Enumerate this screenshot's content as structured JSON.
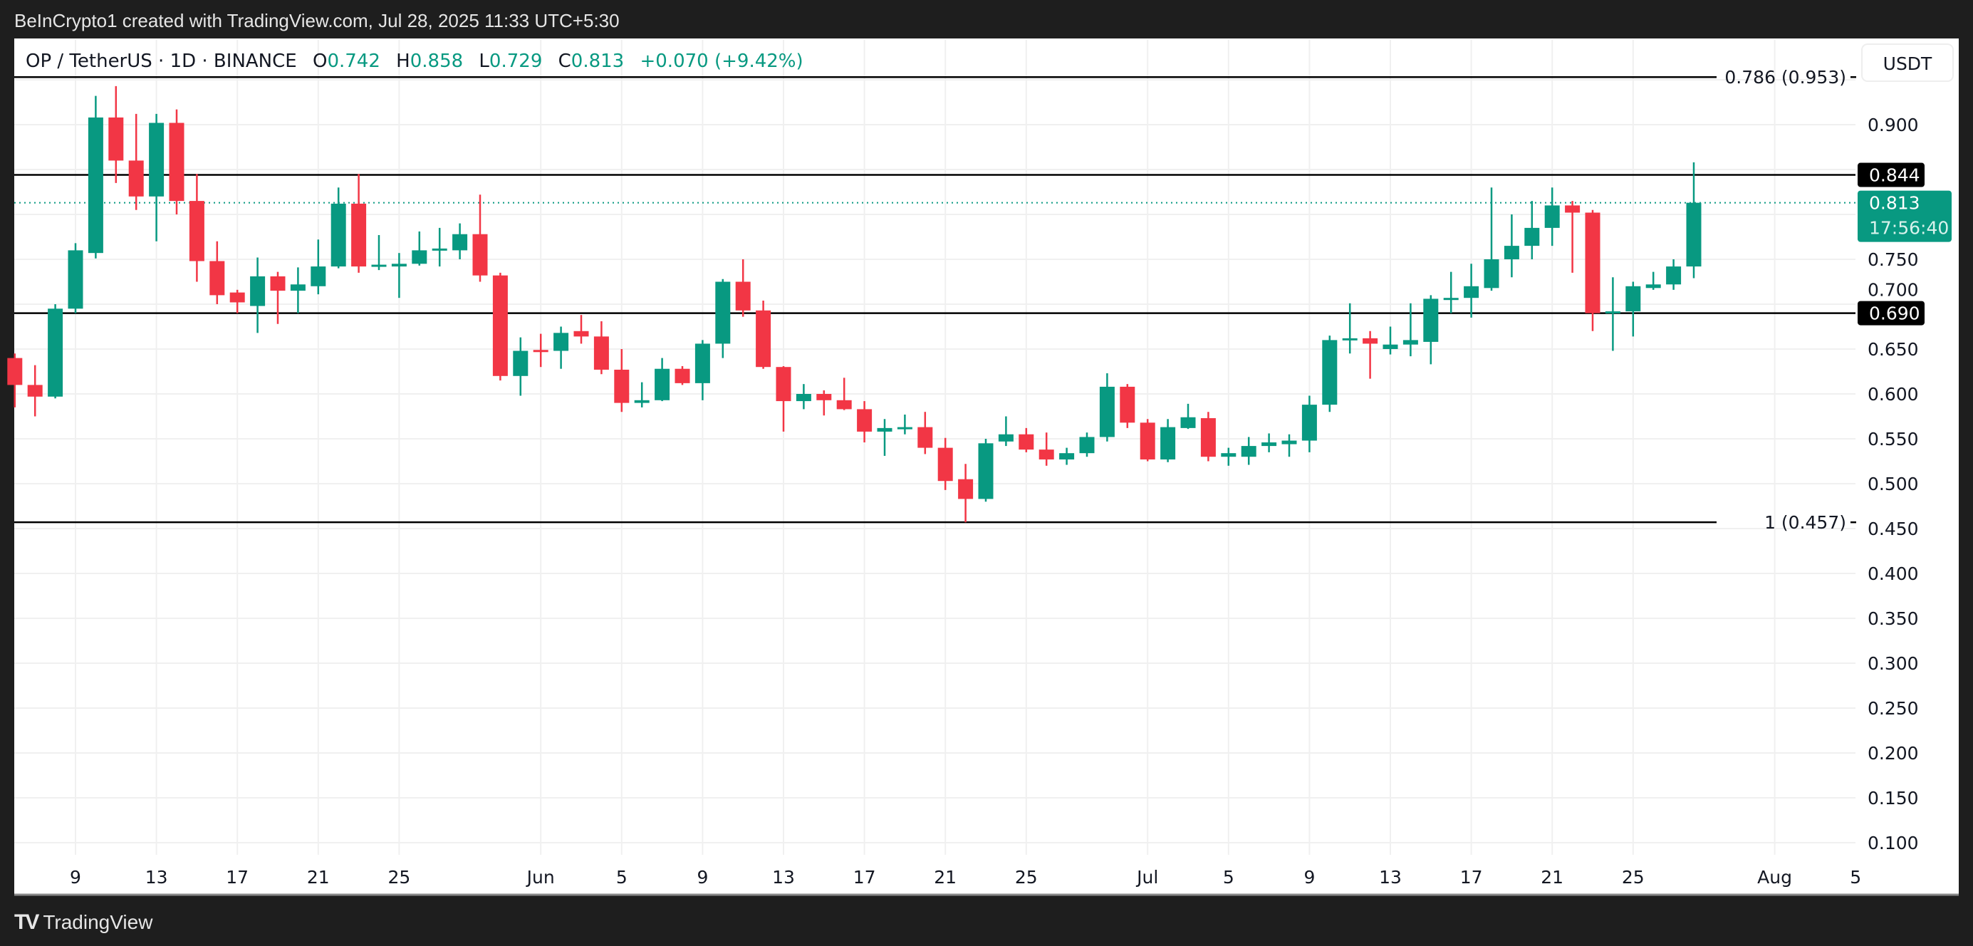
{
  "header": {
    "credit": "BeInCrypto1 created with TradingView.com, Jul 28, 2025 11:33 UTC+5:30"
  },
  "legend": {
    "symbol": "OP / TetherUS · 1D · BINANCE",
    "o_label": "O",
    "o": "0.742",
    "h_label": "H",
    "h": "0.858",
    "l_label": "L",
    "l": "0.729",
    "c_label": "C",
    "c": "0.813",
    "change": "+0.070 (+9.42%)"
  },
  "currency_button": "USDT",
  "footer": {
    "logo": "TradingView",
    "logo_mark": "17"
  },
  "colors": {
    "up": "#089981",
    "down": "#F23645",
    "level": "#000000",
    "grid": "#f0f0f0"
  },
  "chart_data": {
    "type": "candlestick",
    "title": "OP / TetherUS · 1D · BINANCE",
    "ylim": [
      0.08,
      0.97
    ],
    "grid": true,
    "y_ticks": [
      "0.900",
      "0.750",
      "0.700",
      "0.650",
      "0.600",
      "0.550",
      "0.500",
      "0.450",
      "0.400",
      "0.350",
      "0.300",
      "0.250",
      "0.200",
      "0.150",
      "0.100"
    ],
    "x_ticks": [
      {
        "label": "9",
        "date": "2025-05-09"
      },
      {
        "label": "13",
        "date": "2025-05-13"
      },
      {
        "label": "17",
        "date": "2025-05-17"
      },
      {
        "label": "21",
        "date": "2025-05-21"
      },
      {
        "label": "25",
        "date": "2025-05-25"
      },
      {
        "label": "Jun",
        "date": "2025-06-01"
      },
      {
        "label": "5",
        "date": "2025-06-05"
      },
      {
        "label": "9",
        "date": "2025-06-09"
      },
      {
        "label": "13",
        "date": "2025-06-13"
      },
      {
        "label": "17",
        "date": "2025-06-17"
      },
      {
        "label": "21",
        "date": "2025-06-21"
      },
      {
        "label": "25",
        "date": "2025-06-25"
      },
      {
        "label": "Jul",
        "date": "2025-07-01"
      },
      {
        "label": "5",
        "date": "2025-07-05"
      },
      {
        "label": "9",
        "date": "2025-07-09"
      },
      {
        "label": "13",
        "date": "2025-07-13"
      },
      {
        "label": "17",
        "date": "2025-07-17"
      },
      {
        "label": "21",
        "date": "2025-07-21"
      },
      {
        "label": "25",
        "date": "2025-07-25"
      },
      {
        "label": "Aug",
        "date": "2025-08-01"
      },
      {
        "label": "5",
        "date": "2025-08-05"
      }
    ],
    "levels": [
      {
        "price": 0.953,
        "label": "0.786 (0.953)",
        "style": "fib"
      },
      {
        "price": 0.844,
        "label": "0.844",
        "style": "box"
      },
      {
        "price": 0.69,
        "label": "0.690",
        "style": "box"
      },
      {
        "price": 0.457,
        "label": "1 (0.457)",
        "style": "fib"
      }
    ],
    "last_price": {
      "price": 0.813,
      "label": "0.813",
      "countdown": "17:56:40"
    },
    "columns": [
      "date",
      "open",
      "high",
      "low",
      "close"
    ],
    "candles": [
      [
        "2025-05-06",
        0.64,
        0.645,
        0.585,
        0.61
      ],
      [
        "2025-05-07",
        0.61,
        0.632,
        0.575,
        0.597
      ],
      [
        "2025-05-08",
        0.597,
        0.7,
        0.595,
        0.695
      ],
      [
        "2025-05-09",
        0.695,
        0.768,
        0.69,
        0.76
      ],
      [
        "2025-05-10",
        0.757,
        0.932,
        0.751,
        0.908
      ],
      [
        "2025-05-11",
        0.908,
        0.943,
        0.835,
        0.86
      ],
      [
        "2025-05-12",
        0.86,
        0.912,
        0.805,
        0.82
      ],
      [
        "2025-05-13",
        0.82,
        0.912,
        0.77,
        0.902
      ],
      [
        "2025-05-14",
        0.902,
        0.917,
        0.8,
        0.815
      ],
      [
        "2025-05-15",
        0.815,
        0.845,
        0.725,
        0.748
      ],
      [
        "2025-05-16",
        0.748,
        0.77,
        0.7,
        0.71
      ],
      [
        "2025-05-17",
        0.713,
        0.716,
        0.69,
        0.702
      ],
      [
        "2025-05-18",
        0.698,
        0.752,
        0.668,
        0.731
      ],
      [
        "2025-05-19",
        0.731,
        0.736,
        0.678,
        0.715
      ],
      [
        "2025-05-20",
        0.715,
        0.741,
        0.69,
        0.722
      ],
      [
        "2025-05-21",
        0.72,
        0.772,
        0.711,
        0.742
      ],
      [
        "2025-05-22",
        0.742,
        0.83,
        0.74,
        0.812
      ],
      [
        "2025-05-23",
        0.812,
        0.845,
        0.735,
        0.742
      ],
      [
        "2025-05-24",
        0.742,
        0.777,
        0.738,
        0.744
      ],
      [
        "2025-05-25",
        0.742,
        0.757,
        0.707,
        0.745
      ],
      [
        "2025-05-26",
        0.745,
        0.781,
        0.743,
        0.76
      ],
      [
        "2025-05-27",
        0.76,
        0.785,
        0.742,
        0.762
      ],
      [
        "2025-05-28",
        0.76,
        0.79,
        0.75,
        0.778
      ],
      [
        "2025-05-29",
        0.778,
        0.822,
        0.725,
        0.732
      ],
      [
        "2025-05-30",
        0.732,
        0.735,
        0.615,
        0.62
      ],
      [
        "2025-05-31",
        0.62,
        0.663,
        0.598,
        0.648
      ],
      [
        "2025-06-01",
        0.649,
        0.667,
        0.63,
        0.647
      ],
      [
        "2025-06-02",
        0.648,
        0.675,
        0.628,
        0.668
      ],
      [
        "2025-06-03",
        0.67,
        0.688,
        0.656,
        0.664
      ],
      [
        "2025-06-04",
        0.664,
        0.681,
        0.622,
        0.627
      ],
      [
        "2025-06-05",
        0.627,
        0.65,
        0.58,
        0.59
      ],
      [
        "2025-06-06",
        0.59,
        0.613,
        0.585,
        0.593
      ],
      [
        "2025-06-07",
        0.593,
        0.64,
        0.592,
        0.628
      ],
      [
        "2025-06-08",
        0.628,
        0.631,
        0.61,
        0.612
      ],
      [
        "2025-06-09",
        0.612,
        0.66,
        0.593,
        0.656
      ],
      [
        "2025-06-10",
        0.656,
        0.728,
        0.64,
        0.725
      ],
      [
        "2025-06-11",
        0.725,
        0.75,
        0.686,
        0.693
      ],
      [
        "2025-06-12",
        0.693,
        0.704,
        0.628,
        0.63
      ],
      [
        "2025-06-13",
        0.63,
        0.631,
        0.558,
        0.592
      ],
      [
        "2025-06-14",
        0.592,
        0.611,
        0.583,
        0.6
      ],
      [
        "2025-06-15",
        0.6,
        0.604,
        0.576,
        0.593
      ],
      [
        "2025-06-16",
        0.593,
        0.618,
        0.582,
        0.583
      ],
      [
        "2025-06-17",
        0.583,
        0.592,
        0.546,
        0.558
      ],
      [
        "2025-06-18",
        0.558,
        0.572,
        0.531,
        0.562
      ],
      [
        "2025-06-19",
        0.562,
        0.577,
        0.555,
        0.563
      ],
      [
        "2025-06-20",
        0.563,
        0.58,
        0.533,
        0.54
      ],
      [
        "2025-06-21",
        0.54,
        0.551,
        0.493,
        0.503
      ],
      [
        "2025-06-22",
        0.505,
        0.522,
        0.457,
        0.483
      ],
      [
        "2025-06-23",
        0.483,
        0.55,
        0.48,
        0.545
      ],
      [
        "2025-06-24",
        0.547,
        0.575,
        0.542,
        0.555
      ],
      [
        "2025-06-25",
        0.555,
        0.562,
        0.535,
        0.538
      ],
      [
        "2025-06-26",
        0.538,
        0.557,
        0.52,
        0.527
      ],
      [
        "2025-06-27",
        0.527,
        0.54,
        0.521,
        0.534
      ],
      [
        "2025-06-28",
        0.534,
        0.557,
        0.53,
        0.552
      ],
      [
        "2025-06-29",
        0.552,
        0.623,
        0.547,
        0.608
      ],
      [
        "2025-06-30",
        0.608,
        0.611,
        0.562,
        0.568
      ],
      [
        "2025-07-01",
        0.568,
        0.572,
        0.525,
        0.527
      ],
      [
        "2025-07-02",
        0.527,
        0.572,
        0.524,
        0.563
      ],
      [
        "2025-07-03",
        0.562,
        0.589,
        0.561,
        0.574
      ],
      [
        "2025-07-04",
        0.573,
        0.58,
        0.525,
        0.53
      ],
      [
        "2025-07-05",
        0.53,
        0.54,
        0.52,
        0.534
      ],
      [
        "2025-07-06",
        0.53,
        0.552,
        0.521,
        0.542
      ],
      [
        "2025-07-07",
        0.542,
        0.556,
        0.535,
        0.546
      ],
      [
        "2025-07-08",
        0.544,
        0.555,
        0.53,
        0.548
      ],
      [
        "2025-07-09",
        0.548,
        0.598,
        0.535,
        0.588
      ],
      [
        "2025-07-10",
        0.588,
        0.665,
        0.58,
        0.66
      ],
      [
        "2025-07-11",
        0.66,
        0.701,
        0.645,
        0.662
      ],
      [
        "2025-07-12",
        0.662,
        0.67,
        0.617,
        0.656
      ],
      [
        "2025-07-13",
        0.65,
        0.675,
        0.644,
        0.655
      ],
      [
        "2025-07-14",
        0.655,
        0.701,
        0.642,
        0.66
      ],
      [
        "2025-07-15",
        0.658,
        0.71,
        0.633,
        0.706
      ],
      [
        "2025-07-16",
        0.705,
        0.736,
        0.69,
        0.707
      ],
      [
        "2025-07-17",
        0.707,
        0.745,
        0.685,
        0.72
      ],
      [
        "2025-07-18",
        0.718,
        0.83,
        0.715,
        0.75
      ],
      [
        "2025-07-19",
        0.75,
        0.8,
        0.73,
        0.765
      ],
      [
        "2025-07-20",
        0.765,
        0.815,
        0.75,
        0.785
      ],
      [
        "2025-07-21",
        0.785,
        0.83,
        0.765,
        0.81
      ],
      [
        "2025-07-22",
        0.81,
        0.815,
        0.735,
        0.802
      ],
      [
        "2025-07-23",
        0.802,
        0.805,
        0.67,
        0.69
      ],
      [
        "2025-07-24",
        0.69,
        0.73,
        0.648,
        0.692
      ],
      [
        "2025-07-25",
        0.692,
        0.725,
        0.664,
        0.72
      ],
      [
        "2025-07-26",
        0.718,
        0.736,
        0.716,
        0.722
      ],
      [
        "2025-07-27",
        0.722,
        0.75,
        0.716,
        0.742
      ],
      [
        "2025-07-28",
        0.742,
        0.858,
        0.729,
        0.813
      ]
    ]
  }
}
